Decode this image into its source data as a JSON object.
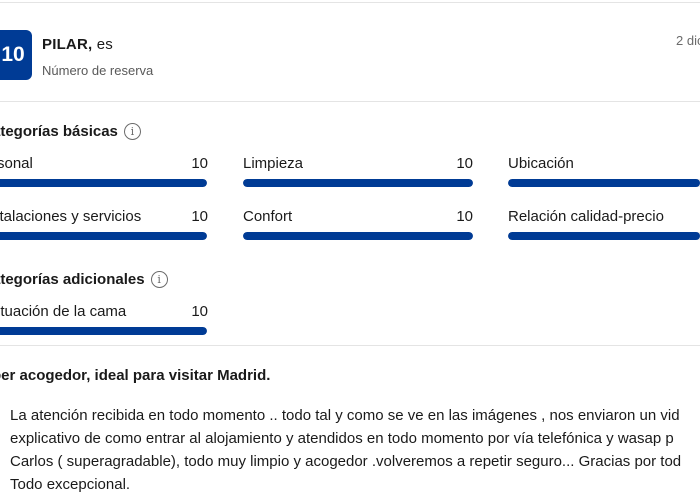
{
  "reviewer": {
    "score": "10",
    "name": "PILAR,",
    "language": "es",
    "booking_label": "Número de reserva",
    "date": "2 dic"
  },
  "basic": {
    "title": "ategorías básicas",
    "items": [
      {
        "label": "rsonal",
        "score": "10",
        "value": 10
      },
      {
        "label": "Limpieza",
        "score": "10",
        "value": 10
      },
      {
        "label": "Ubicación",
        "score": "",
        "value": 10
      },
      {
        "label": "stalaciones y servicios",
        "score": "10",
        "value": 10
      },
      {
        "label": "Confort",
        "score": "10",
        "value": 10
      },
      {
        "label": "Relación calidad-precio",
        "score": "",
        "value": 10
      }
    ]
  },
  "additional": {
    "title": "ategorías adicionales",
    "items": [
      {
        "label": "ntuación de la cama",
        "score": "10",
        "value": 10
      }
    ]
  },
  "review": {
    "title": "per acogedor, ideal para visitar Madrid.",
    "lines": [
      "La atención recibida en todo momento .. todo tal y como se ve en las imágenes , nos enviaron un vid",
      "explicativo de como entrar al alojamiento y atendidos en todo momento por vía telefónica y wasap p",
      "Carlos ( superagradable), todo muy limpio y acogedor .volveremos a repetir seguro... Gracias por tod",
      "Todo excepcional."
    ]
  },
  "colors": {
    "accent": "#003b95",
    "track": "#e6e6e6",
    "divider": "#e4e4e4"
  }
}
